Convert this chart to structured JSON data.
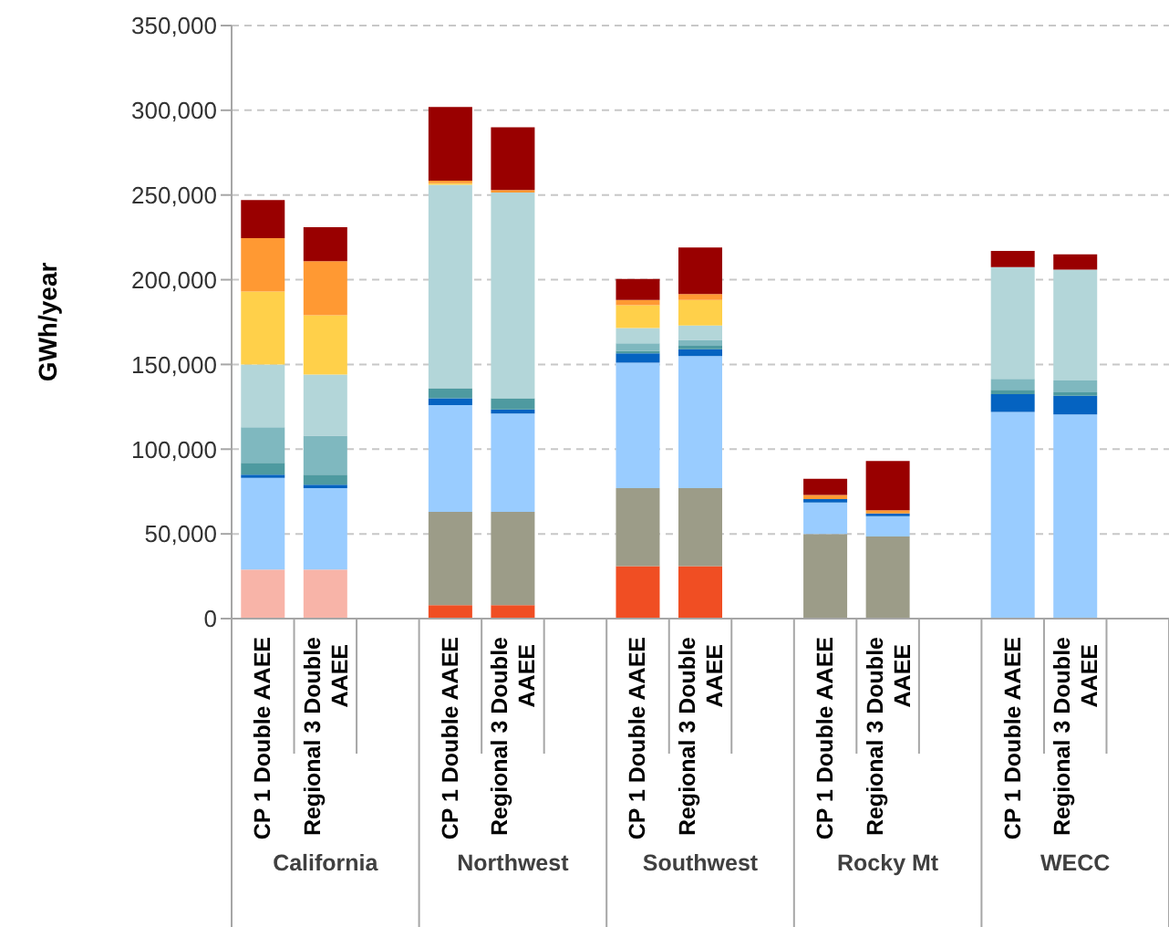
{
  "chart_data": {
    "type": "bar",
    "stacked": true,
    "ylabel": "GWh/year",
    "categories": [
      "CP 1 Double AAEE",
      "Regional 3 Double AAEE",
      null,
      "CP 1 Double AAEE",
      "Regional 3 Double AAEE",
      null,
      "CP 1 Double AAEE",
      "Regional 3 Double AAEE",
      null,
      "CP 1 Double AAEE",
      "Regional 3 Double AAEE",
      null,
      "CP 1 Double AAEE",
      "Regional 3 Double AAEE",
      null
    ],
    "annotations": [
      "California",
      "Northwest",
      "Southwest",
      "Rocky Mt",
      "WECC"
    ],
    "series": [
      {
        "color": "#f8b4a8",
        "values": [
          29000,
          29000,
          null,
          null,
          null,
          null,
          null,
          null,
          null,
          null,
          null,
          null,
          null,
          null,
          null
        ]
      },
      {
        "color": "#f04e23",
        "values": [
          null,
          null,
          null,
          8000,
          8000,
          null,
          31000,
          31000,
          null,
          null,
          null,
          null,
          null,
          null,
          null
        ]
      },
      {
        "color": "#9c9c88",
        "values": [
          null,
          null,
          null,
          55000,
          55000,
          null,
          46000,
          46000,
          null,
          50000,
          48500,
          null,
          null,
          null,
          null
        ]
      },
      {
        "color": "#99ccff",
        "values": [
          54000,
          48000,
          null,
          63000,
          58000,
          null,
          74000,
          78000,
          null,
          18500,
          12000,
          null,
          122000,
          120500,
          null
        ]
      },
      {
        "color": "#0563c1",
        "values": [
          2000,
          2000,
          null,
          4000,
          2500,
          null,
          5500,
          4000,
          null,
          2000,
          1500,
          null,
          10500,
          11000,
          null
        ]
      },
      {
        "color": "#4e9aa0",
        "values": [
          7000,
          6000,
          null,
          6000,
          6500,
          null,
          1500,
          2000,
          null,
          null,
          null,
          null,
          2500,
          2000,
          null
        ]
      },
      {
        "color": "#7fb8bf",
        "values": [
          21000,
          23000,
          null,
          null,
          null,
          null,
          4500,
          3500,
          null,
          null,
          null,
          null,
          6500,
          7000,
          null
        ]
      },
      {
        "color": "#b3d6d9",
        "values": [
          37000,
          36000,
          null,
          120000,
          121500,
          null,
          9000,
          8500,
          null,
          null,
          null,
          null,
          66000,
          65500,
          null
        ]
      },
      {
        "color": "#ffd04a",
        "values": [
          43000,
          35000,
          null,
          1000,
          null,
          null,
          13500,
          15000,
          null,
          null,
          null,
          null,
          null,
          null,
          null
        ]
      },
      {
        "color": "#ff9933",
        "values": [
          31500,
          32000,
          null,
          1500,
          1500,
          null,
          3000,
          3500,
          null,
          2500,
          2000,
          null,
          null,
          null,
          null
        ]
      },
      {
        "color": "#990000",
        "values": [
          22500,
          20000,
          null,
          43500,
          37000,
          null,
          12500,
          27500,
          null,
          9500,
          29000,
          null,
          9500,
          9000,
          null
        ]
      }
    ],
    "ylim": [
      0,
      350000
    ],
    "yticks": [
      0,
      {
        "value": 50000,
        "label": "50,000"
      },
      {
        "value": 100000,
        "label": "100,000"
      },
      {
        "value": 150000,
        "label": "150,000"
      },
      {
        "value": 200000,
        "label": "200,000"
      },
      {
        "value": 250000,
        "label": "250,000"
      },
      {
        "value": 300000,
        "label": "300,000"
      },
      {
        "value": 350000,
        "label": "350,000"
      }
    ],
    "grid": "y",
    "legend": false
  }
}
